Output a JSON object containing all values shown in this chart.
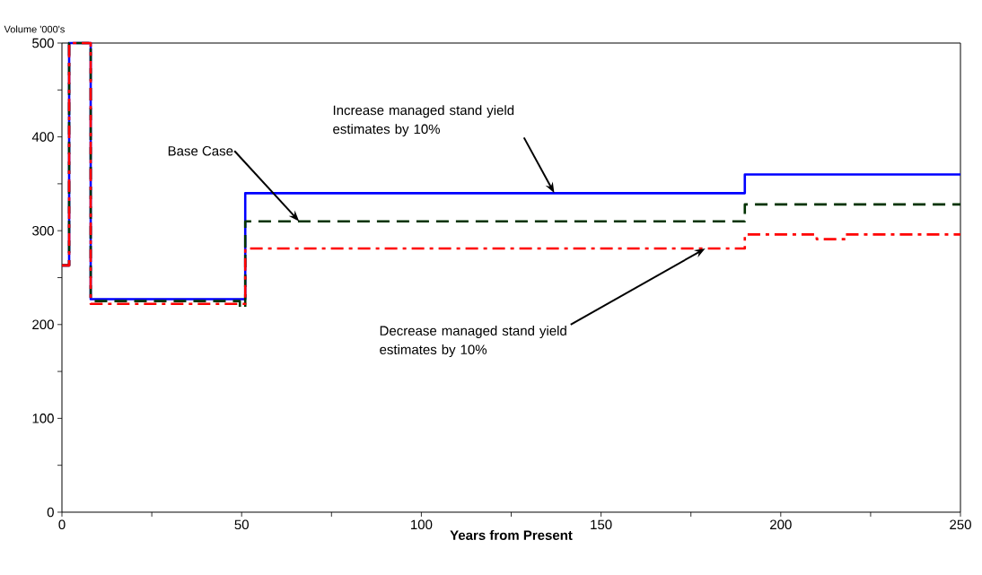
{
  "chart_data": {
    "type": "step",
    "ylabel": "Volume '000's",
    "xlabel": "Years from Present",
    "xlim": [
      0,
      250
    ],
    "ylim": [
      0,
      500
    ],
    "xticks": [
      0,
      {
        "value": 25,
        "label": null
      },
      50,
      {
        "value": 75,
        "label": null
      },
      100,
      {
        "value": 125,
        "label": null
      },
      150,
      {
        "value": 175,
        "label": null
      },
      200,
      {
        "value": 225,
        "label": null
      },
      250
    ],
    "yticks": [
      0,
      {
        "value": 50,
        "label": null
      },
      100,
      {
        "value": 150,
        "label": null
      },
      200,
      {
        "value": 250,
        "label": null
      },
      300,
      {
        "value": 350,
        "label": null
      },
      400,
      {
        "value": 450,
        "label": null
      },
      500
    ],
    "marker": "none",
    "series": [
      {
        "color": "#0000ff",
        "line_style": "solid",
        "x": [
          0,
          2,
          8,
          51,
          190,
          250
        ],
        "values": [
          263,
          500,
          227,
          340,
          360,
          360
        ]
      },
      {
        "color": "#003300",
        "line_style": "dashed",
        "x": [
          0,
          2,
          8,
          49.5,
          51,
          190,
          250
        ],
        "values": [
          263,
          500,
          225,
          218,
          310,
          328,
          328
        ]
      },
      {
        "color": "#ff0000",
        "line_style": "dashdot",
        "x": [
          0,
          2,
          8,
          51,
          190,
          210,
          218,
          250
        ],
        "values": [
          263,
          500,
          222,
          281,
          296,
          291,
          296,
          296
        ]
      }
    ],
    "annotations": [
      {
        "text": "Increase managed stand yield estimates by 10%",
        "x": 137,
        "y": 340
      },
      {
        "text": "Base Case",
        "x": 66,
        "y": 310
      },
      {
        "text": "Decrease managed stand yield estimates by 10%",
        "x": 179,
        "y": 281
      }
    ]
  }
}
